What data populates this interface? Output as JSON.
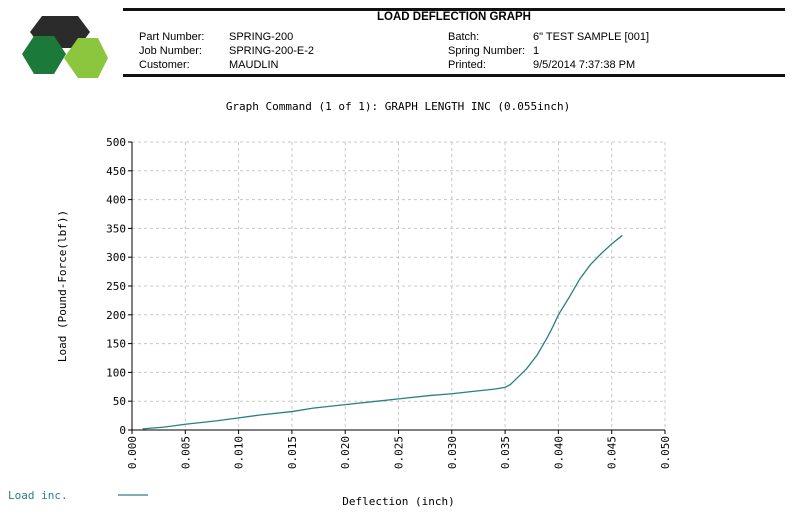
{
  "report": {
    "title": "LOAD DEFLECTION GRAPH",
    "fields_left": [
      {
        "label": "Part Number:",
        "value": "SPRING-200"
      },
      {
        "label": "Job Number:",
        "value": "SPRING-200-E-2"
      },
      {
        "label": "Customer:",
        "value": "MAUDLIN"
      }
    ],
    "fields_right": [
      {
        "label": "Batch:",
        "value": "6\" TEST SAMPLE [001]"
      },
      {
        "label": "Spring Number:",
        "value": "1"
      },
      {
        "label": "Printed:",
        "value": "9/5/2014 7:37:38 PM"
      }
    ]
  },
  "logo": {
    "colors": {
      "dark": "#2b2b2b",
      "green_dark": "#1b7a3a",
      "green_light": "#8cc63f"
    }
  },
  "chart_data": {
    "type": "line",
    "title": "Graph Command (1 of 1): GRAPH LENGTH INC (0.055inch)",
    "xlabel": "Deflection (inch)",
    "ylabel": "Load (Pound-Force(lbf))",
    "xlim": [
      0,
      0.05
    ],
    "ylim": [
      0,
      500
    ],
    "x_ticks": [
      "0.000",
      "0.005",
      "0.010",
      "0.015",
      "0.020",
      "0.025",
      "0.030",
      "0.035",
      "0.040",
      "0.045",
      "0.050"
    ],
    "y_ticks": [
      "0",
      "50",
      "100",
      "150",
      "200",
      "250",
      "300",
      "350",
      "400",
      "450",
      "500"
    ],
    "grid": true,
    "legend_position": "bottom-left",
    "series": [
      {
        "name": "Load inc.",
        "color": "#2a7f86",
        "x": [
          0.001,
          0.003,
          0.005,
          0.008,
          0.01,
          0.012,
          0.015,
          0.017,
          0.02,
          0.023,
          0.025,
          0.028,
          0.03,
          0.032,
          0.034,
          0.035,
          0.0355,
          0.036,
          0.037,
          0.038,
          0.039,
          0.0395,
          0.04,
          0.041,
          0.042,
          0.043,
          0.044,
          0.045,
          0.046
        ],
        "y": [
          2,
          5,
          10,
          16,
          21,
          26,
          32,
          38,
          44,
          50,
          54,
          60,
          63,
          67,
          71,
          74,
          79,
          88,
          106,
          130,
          162,
          180,
          200,
          230,
          262,
          287,
          306,
          323,
          338
        ]
      }
    ]
  }
}
